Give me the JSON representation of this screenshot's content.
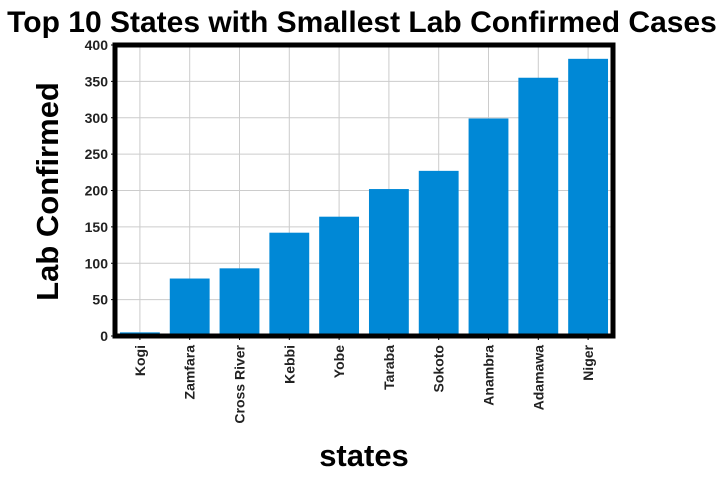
{
  "chart_data": {
    "type": "bar",
    "title": "Top 10 States with Smallest Lab Confirmed Cases",
    "xlabel": "states",
    "ylabel": "Lab Confirmed",
    "categories": [
      "Kogi",
      "Zamfara",
      "Cross River",
      "Kebbi",
      "Yobe",
      "Taraba",
      "Sokoto",
      "Anambra",
      "Adamawa",
      "Niger"
    ],
    "values": [
      5,
      79,
      93,
      142,
      164,
      202,
      227,
      299,
      355,
      381
    ],
    "ylim": [
      0,
      400
    ],
    "yticks": [
      0,
      50,
      100,
      150,
      200,
      250,
      300,
      350,
      400
    ],
    "grid": true,
    "bar_color": "#0088d6"
  }
}
